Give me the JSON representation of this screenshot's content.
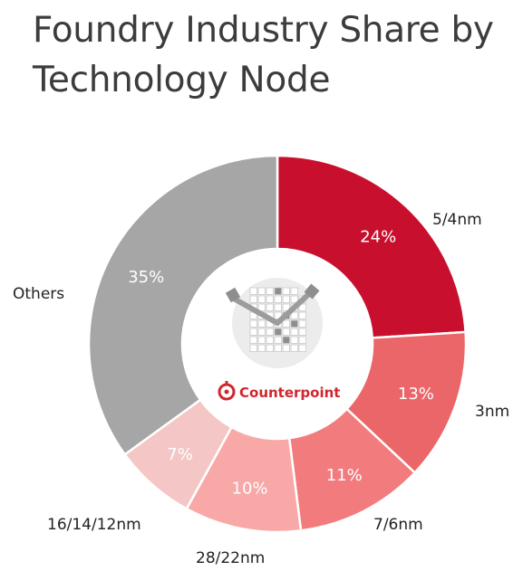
{
  "chart_data": {
    "type": "pie",
    "title": "Foundry Industry Share by Technology Node",
    "categories": [
      "5/4nm",
      "3nm",
      "7/6nm",
      "28/22nm",
      "16/14/12nm",
      "Others"
    ],
    "values": [
      24,
      13,
      11,
      10,
      7,
      35
    ],
    "value_labels": [
      "24%",
      "13%",
      "11%",
      "10%",
      "7%",
      "35%"
    ],
    "colors": [
      "#c8102e",
      "#ea6668",
      "#f27b7d",
      "#f9a8a8",
      "#f5c6c6",
      "#a6a6a6"
    ],
    "donut": true
  },
  "branding": {
    "logo_text": "Counterpoint",
    "logo_color": "#d0262d"
  }
}
